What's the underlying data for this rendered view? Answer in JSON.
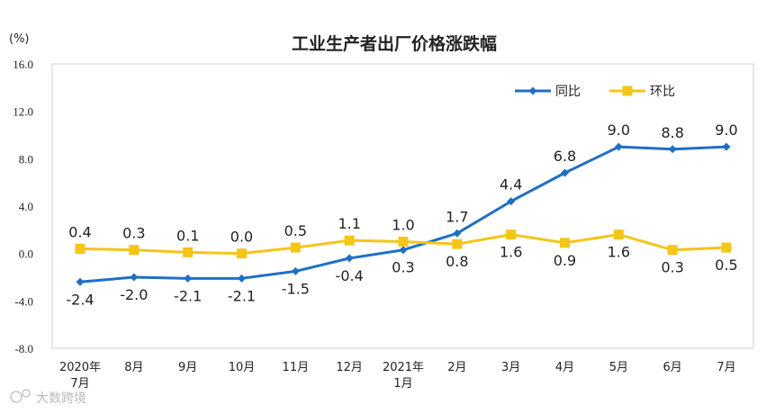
{
  "chart_data": {
    "type": "line",
    "title": "工业生产者出厂价格涨跌幅",
    "unit_label": "(%)",
    "ylim": [
      -8.0,
      16.0
    ],
    "y_ticks": [
      "16.0",
      "12.0",
      "8.0",
      "4.0",
      "0.0",
      "-4.0",
      "-8.0"
    ],
    "y_tick_values": [
      16,
      12,
      8,
      4,
      0,
      -4,
      -8
    ],
    "categories": [
      [
        "2020年",
        "7月"
      ],
      [
        "8月"
      ],
      [
        "9月"
      ],
      [
        "10月"
      ],
      [
        "11月"
      ],
      [
        "12月"
      ],
      [
        "2021年",
        "1月"
      ],
      [
        "2月"
      ],
      [
        "3月"
      ],
      [
        "4月"
      ],
      [
        "5月"
      ],
      [
        "6月"
      ],
      [
        "7月"
      ]
    ],
    "series": [
      {
        "name": "同比",
        "color": "#1f6fc5",
        "marker": "diamond",
        "values": [
          -2.4,
          -2.0,
          -2.1,
          -2.1,
          -1.5,
          -0.4,
          0.3,
          1.7,
          4.4,
          6.8,
          9.0,
          8.8,
          9.0
        ],
        "labels": [
          "-2.4",
          "-2.0",
          "-2.1",
          "-2.1",
          "-1.5",
          "-0.4",
          "0.3",
          "1.7",
          "4.4",
          "6.8",
          "9.0",
          "8.8",
          "9.0"
        ],
        "label_pos": [
          "below",
          "below",
          "below",
          "below",
          "below",
          "below",
          "below",
          "above",
          "above",
          "above",
          "above",
          "above",
          "above"
        ]
      },
      {
        "name": "环比",
        "color": "#f5c518",
        "marker": "square",
        "values": [
          0.4,
          0.3,
          0.1,
          0.0,
          0.5,
          1.1,
          1.0,
          0.8,
          1.6,
          0.9,
          1.6,
          0.3,
          0.5
        ],
        "labels": [
          "0.4",
          "0.3",
          "0.1",
          "0.0",
          "0.5",
          "1.1",
          "1.0",
          "0.8",
          "1.6",
          "0.9",
          "1.6",
          "0.3",
          "0.5"
        ],
        "label_pos": [
          "above",
          "above",
          "above",
          "above",
          "above",
          "above",
          "above",
          "below",
          "below",
          "below",
          "below",
          "below",
          "below"
        ]
      }
    ],
    "legend": "top-right",
    "grid": false
  },
  "watermark": "大数跨境"
}
